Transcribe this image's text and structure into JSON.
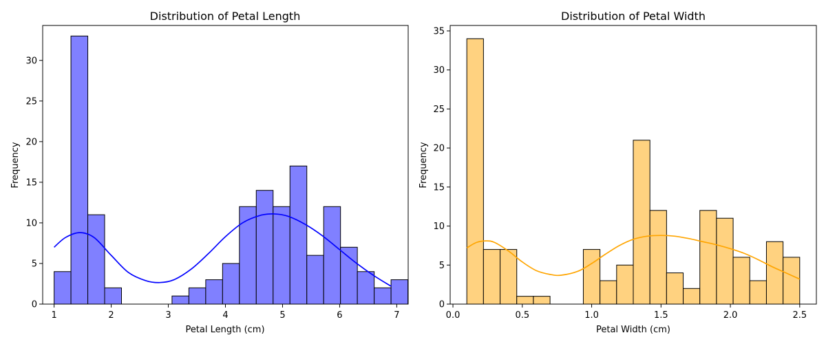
{
  "chart_data": [
    {
      "type": "bar",
      "title": "Distribution of Petal Length",
      "xlabel": "Petal Length (cm)",
      "ylabel": "Frequency",
      "xlim": [
        0.8,
        7.2
      ],
      "ylim": [
        0,
        34.3
      ],
      "xticks": [
        1,
        2,
        3,
        4,
        5,
        6,
        7
      ],
      "yticks": [
        0,
        5,
        10,
        15,
        20,
        25,
        30
      ],
      "bins": {
        "start": 1.0,
        "width": 0.295
      },
      "values": [
        4,
        33,
        11,
        2,
        0,
        0,
        0,
        1,
        2,
        3,
        5,
        12,
        14,
        12,
        17,
        6,
        12,
        7,
        4,
        2,
        3
      ],
      "bar_color": "#8080ff",
      "edge_color": "#000000",
      "kde_color": "#0000ff",
      "kde": {
        "x": [
          1.0,
          1.2,
          1.45,
          1.7,
          2.0,
          2.3,
          2.6,
          2.85,
          3.1,
          3.4,
          3.7,
          4.0,
          4.3,
          4.6,
          4.85,
          5.1,
          5.4,
          5.7,
          6.0,
          6.3,
          6.6,
          6.9
        ],
        "y": [
          7.0,
          8.2,
          8.8,
          8.2,
          6.0,
          3.9,
          2.9,
          2.65,
          3.0,
          4.3,
          6.2,
          8.3,
          10.0,
          10.9,
          11.1,
          10.8,
          9.8,
          8.4,
          6.7,
          5.0,
          3.5,
          2.2
        ]
      }
    },
    {
      "type": "bar",
      "title": "Distribution of Petal Width",
      "xlabel": "Petal Width (cm)",
      "ylabel": "Frequency",
      "xlim": [
        -0.02,
        2.62
      ],
      "ylim": [
        0,
        35.7
      ],
      "xticks": [
        0.0,
        0.5,
        1.0,
        1.5,
        2.0,
        2.5
      ],
      "yticks": [
        0,
        5,
        10,
        15,
        20,
        25,
        30,
        35
      ],
      "bins": {
        "start": 0.1,
        "width": 0.12
      },
      "values": [
        34,
        7,
        7,
        1,
        1,
        0,
        0,
        7,
        3,
        5,
        21,
        12,
        4,
        2,
        12,
        11,
        6,
        3,
        8,
        6
      ],
      "bar_color": "#ffd280",
      "edge_color": "#000000",
      "kde_color": "#ffa500",
      "kde": {
        "x": [
          0.1,
          0.17,
          0.24,
          0.3,
          0.4,
          0.5,
          0.6,
          0.7,
          0.78,
          0.9,
          1.0,
          1.1,
          1.2,
          1.3,
          1.4,
          1.5,
          1.6,
          1.7,
          1.8,
          1.9,
          2.0,
          2.1,
          2.2,
          2.3,
          2.4,
          2.5
        ],
        "y": [
          7.2,
          7.9,
          8.1,
          7.9,
          6.8,
          5.4,
          4.3,
          3.8,
          3.7,
          4.2,
          5.2,
          6.4,
          7.5,
          8.3,
          8.7,
          8.8,
          8.7,
          8.4,
          8.0,
          7.6,
          7.1,
          6.5,
          5.7,
          4.8,
          4.0,
          3.2
        ]
      }
    }
  ]
}
